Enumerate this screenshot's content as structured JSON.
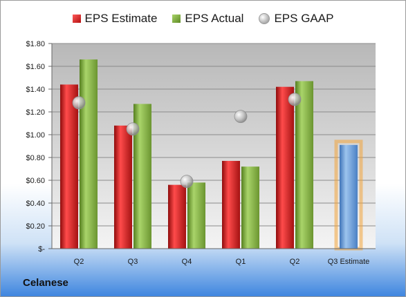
{
  "legend": {
    "estimate": "EPS Estimate",
    "actual": "EPS Actual",
    "gaap": "EPS GAAP"
  },
  "company": "Celanese",
  "colors": {
    "estimate": "#c0181a",
    "actual": "#7aa83a",
    "gaap": "#b4b4b4",
    "forecast": "#6f9fd8",
    "forecast_glow": "#f3a43a"
  },
  "chart_data": {
    "type": "bar",
    "categories": [
      "Q2",
      "Q3",
      "Q4",
      "Q1",
      "Q2",
      "Q3 Estimate"
    ],
    "series": [
      {
        "name": "EPS Estimate",
        "values": [
          1.44,
          1.08,
          0.56,
          0.77,
          1.42,
          null
        ]
      },
      {
        "name": "EPS Actual",
        "values": [
          1.66,
          1.27,
          0.58,
          0.72,
          1.47,
          0.91
        ]
      },
      {
        "name": "EPS GAAP",
        "values": [
          1.28,
          1.05,
          0.59,
          1.16,
          1.31,
          null
        ]
      }
    ],
    "ylim": [
      0,
      1.8
    ],
    "ytick_labels": [
      "$-",
      "$0.20",
      "$0.40",
      "$0.60",
      "$0.80",
      "$1.00",
      "$1.20",
      "$1.40",
      "$1.60",
      "$1.80"
    ],
    "title": "",
    "xlabel": "",
    "ylabel": "",
    "grid": true,
    "legend_position": "top"
  }
}
